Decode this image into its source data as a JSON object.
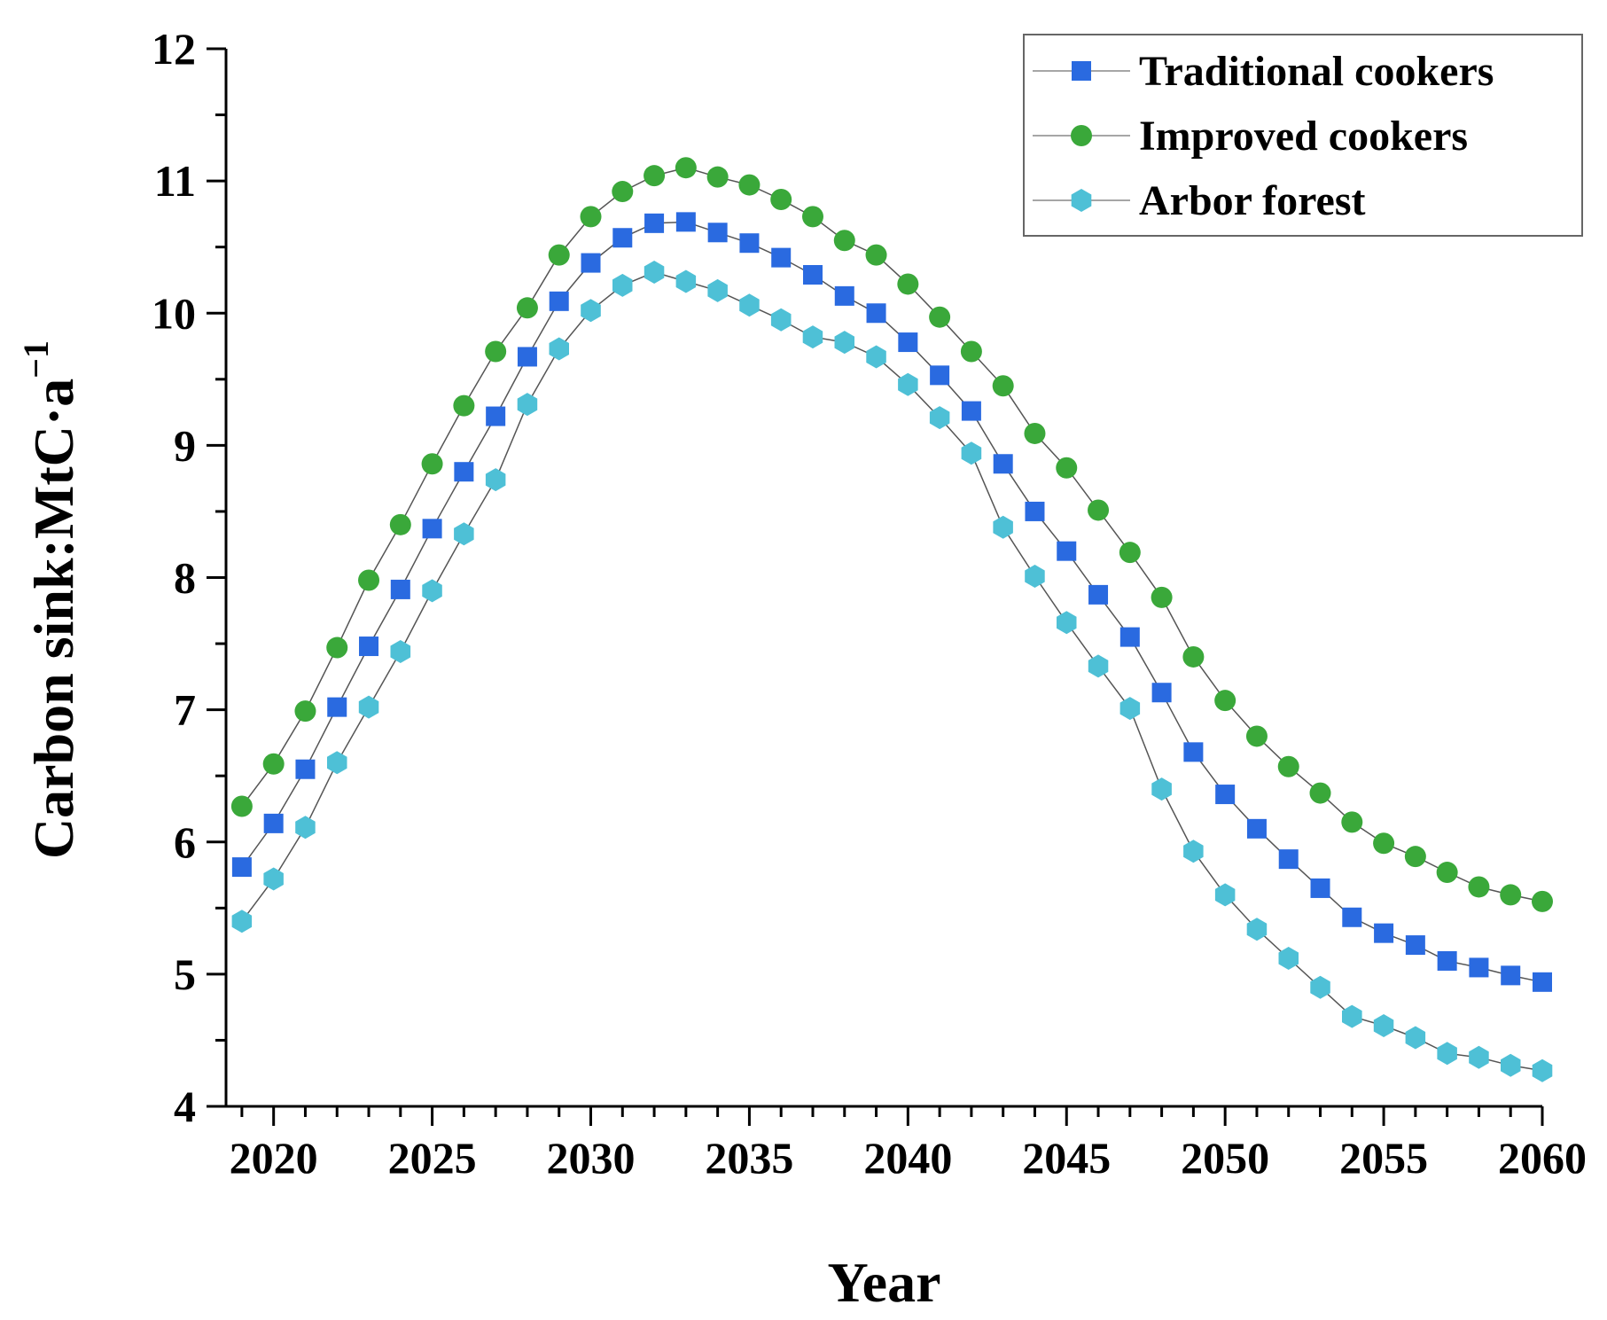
{
  "chart_data": {
    "type": "line",
    "title": "",
    "xlabel": "Year",
    "ylabel": "Carbon sink:MtC·a",
    "ylabel_superscript": "−1",
    "xlim": [
      2018.5,
      2060
    ],
    "ylim": [
      4,
      12
    ],
    "xticks": [
      2020,
      2025,
      2030,
      2035,
      2040,
      2045,
      2050,
      2055,
      2060
    ],
    "yticks": [
      4,
      5,
      6,
      7,
      8,
      9,
      10,
      11,
      12
    ],
    "grid": false,
    "legend_position": "top-right",
    "x": [
      2019,
      2020,
      2021,
      2022,
      2023,
      2024,
      2025,
      2026,
      2027,
      2028,
      2029,
      2030,
      2031,
      2032,
      2033,
      2034,
      2035,
      2036,
      2037,
      2038,
      2039,
      2040,
      2041,
      2042,
      2043,
      2044,
      2045,
      2046,
      2047,
      2048,
      2049,
      2050,
      2051,
      2052,
      2053,
      2054,
      2055,
      2056,
      2057,
      2058,
      2059,
      2060
    ],
    "series": [
      {
        "name": "Traditional cookers",
        "marker": "square",
        "color": "#2a6ae0",
        "values": [
          5.81,
          6.14,
          6.55,
          7.02,
          7.48,
          7.91,
          8.37,
          8.8,
          9.22,
          9.67,
          10.09,
          10.38,
          10.57,
          10.68,
          10.69,
          10.61,
          10.53,
          10.42,
          10.29,
          10.13,
          10.0,
          9.78,
          9.53,
          9.26,
          8.86,
          8.5,
          8.2,
          7.87,
          7.55,
          7.13,
          6.68,
          6.36,
          6.1,
          5.87,
          5.65,
          5.43,
          5.31,
          5.22,
          5.1,
          5.05,
          4.99,
          4.94
        ]
      },
      {
        "name": "Improved cookers",
        "marker": "circle",
        "color": "#3aa83a",
        "values": [
          6.27,
          6.59,
          6.99,
          7.47,
          7.98,
          8.4,
          8.86,
          9.3,
          9.71,
          10.04,
          10.44,
          10.73,
          10.92,
          11.04,
          11.1,
          11.03,
          10.97,
          10.86,
          10.73,
          10.55,
          10.44,
          10.22,
          9.97,
          9.71,
          9.45,
          9.09,
          8.83,
          8.51,
          8.19,
          7.85,
          7.4,
          7.07,
          6.8,
          6.57,
          6.37,
          6.15,
          5.99,
          5.89,
          5.77,
          5.66,
          5.6,
          5.55
        ]
      },
      {
        "name": "Arbor forest",
        "marker": "hexagon",
        "color": "#4ec0d6",
        "values": [
          5.4,
          5.72,
          6.11,
          6.6,
          7.02,
          7.44,
          7.9,
          8.33,
          8.74,
          9.31,
          9.73,
          10.02,
          10.21,
          10.31,
          10.24,
          10.17,
          10.06,
          9.95,
          9.82,
          9.78,
          9.67,
          9.46,
          9.21,
          8.94,
          8.38,
          8.01,
          7.66,
          7.33,
          7.01,
          6.4,
          5.93,
          5.6,
          5.34,
          5.12,
          4.9,
          4.68,
          4.61,
          4.52,
          4.4,
          4.37,
          4.31,
          4.27
        ]
      }
    ]
  }
}
